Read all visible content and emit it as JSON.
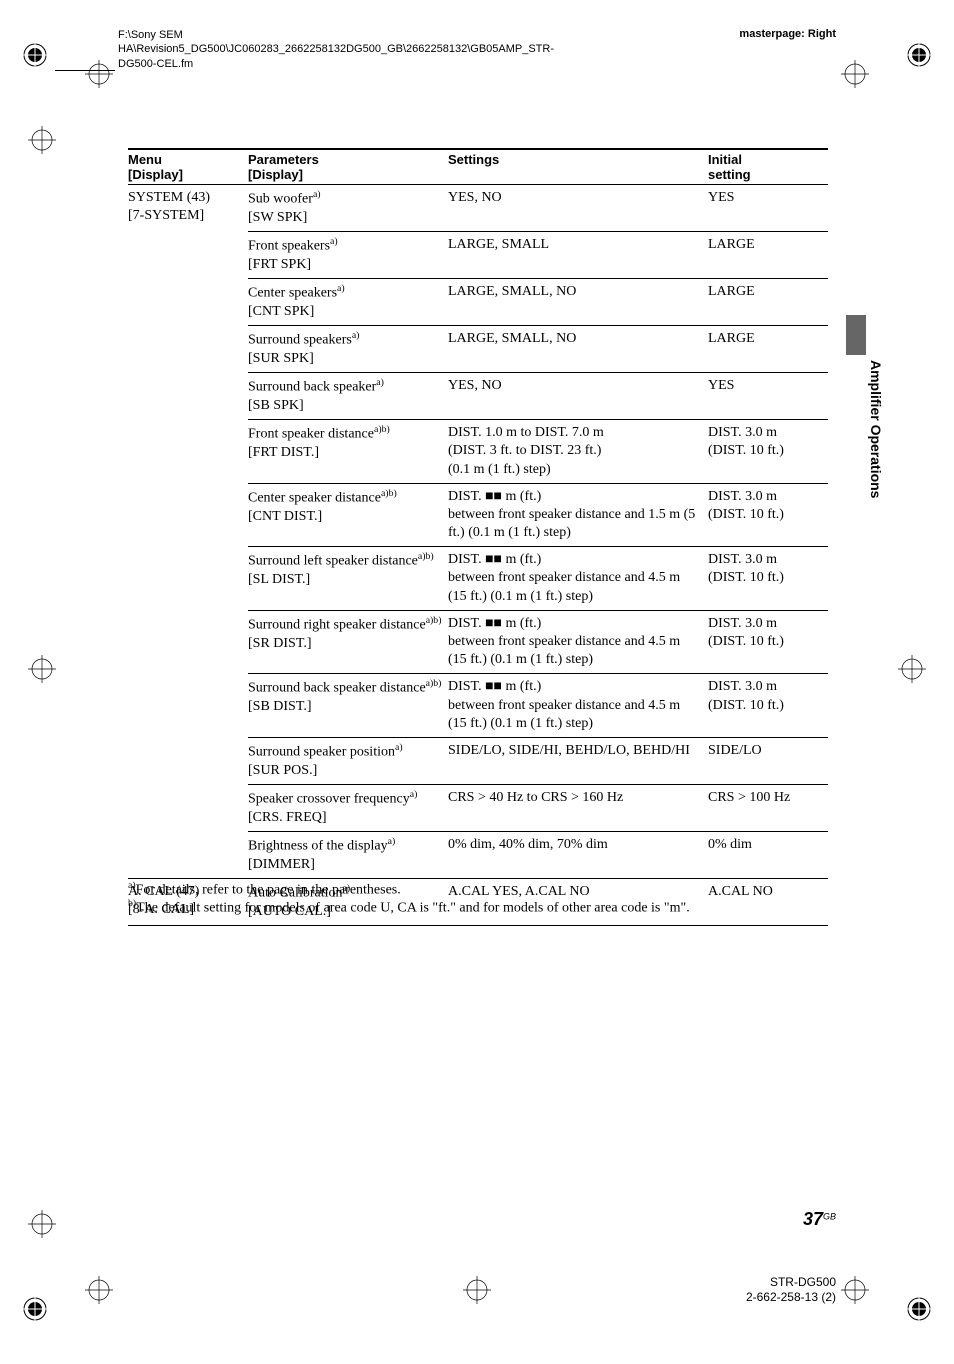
{
  "header": {
    "path": "F:\\Sony SEM HA\\Revision5_DG500\\JC060283_2662258132DG500_GB\\2662258132\\GB05AMP_STR-DG500-CEL.fm",
    "masterpage": "masterpage: Right"
  },
  "table": {
    "headers": {
      "menu": "Menu\n[Display]",
      "parameters": "Parameters\n[Display]",
      "settings": "Settings",
      "initial": "Initial\nsetting"
    },
    "rows": [
      {
        "menu": "SYSTEM (43)\n[7-SYSTEM]",
        "par_text": "Sub woofer",
        "par_sup": "a)",
        "par_disp": "[SW SPK]",
        "settings": "YES, NO",
        "initial": "YES",
        "newsection": true
      },
      {
        "menu": "",
        "par_text": "Front speakers",
        "par_sup": "a)",
        "par_disp": "[FRT SPK]",
        "settings": "LARGE, SMALL",
        "initial": "LARGE"
      },
      {
        "menu": "",
        "par_text": "Center speakers",
        "par_sup": "a)",
        "par_disp": "[CNT SPK]",
        "settings": "LARGE, SMALL, NO",
        "initial": "LARGE"
      },
      {
        "menu": "",
        "par_text": "Surround speakers",
        "par_sup": "a)",
        "par_disp": "[SUR SPK]",
        "settings": "LARGE, SMALL, NO",
        "initial": "LARGE"
      },
      {
        "menu": "",
        "par_text": "Surround back speaker",
        "par_sup": "a)",
        "par_disp": "[SB SPK]",
        "settings": "YES, NO",
        "initial": "YES"
      },
      {
        "menu": "",
        "par_text": "Front speaker distance",
        "par_sup": "a)b)",
        "par_disp": "[FRT DIST.]",
        "settings": "DIST. 1.0 m to DIST. 7.0 m\n(DIST. 3 ft. to DIST. 23 ft.)\n(0.1 m (1 ft.) step)",
        "initial": "DIST. 3.0 m\n(DIST. 10 ft.)"
      },
      {
        "menu": "",
        "par_text": "Center speaker distance",
        "par_sup": "a)b)",
        "par_disp": "[CNT DIST.]",
        "settings": "DIST. ■■ m (ft.)\nbetween front speaker distance and 1.5 m (5 ft.) (0.1 m (1 ft.) step)",
        "initial": "DIST. 3.0 m\n(DIST. 10 ft.)"
      },
      {
        "menu": "",
        "par_text": "Surround left speaker distance",
        "par_sup": "a)b)",
        "par_disp": "[SL DIST.]",
        "settings": "DIST. ■■ m (ft.)\nbetween front speaker distance and 4.5 m (15 ft.) (0.1 m (1 ft.) step)",
        "initial": "DIST. 3.0 m\n(DIST. 10 ft.)"
      },
      {
        "menu": "",
        "par_text": "Surround right speaker distance",
        "par_sup": "a)b)",
        "par_disp": "[SR DIST.]",
        "settings": "DIST. ■■ m (ft.)\nbetween front speaker distance and 4.5 m (15 ft.) (0.1 m (1 ft.) step)",
        "initial": "DIST. 3.0 m\n(DIST. 10 ft.)"
      },
      {
        "menu": "",
        "par_text": "Surround back speaker distance",
        "par_sup": "a)b)",
        "par_disp": "[SB DIST.]",
        "settings": "DIST. ■■ m (ft.)\nbetween front speaker distance and 4.5 m (15 ft.) (0.1 m (1 ft.) step)",
        "initial": "DIST. 3.0 m\n(DIST. 10 ft.)"
      },
      {
        "menu": "",
        "par_text": "Surround speaker position",
        "par_sup": "a)",
        "par_disp": "[SUR POS.]",
        "settings": "SIDE/LO, SIDE/HI, BEHD/LO, BEHD/HI",
        "initial": "SIDE/LO"
      },
      {
        "menu": "",
        "par_text": "Speaker crossover frequency",
        "par_sup": "a)",
        "par_disp": "[CRS. FREQ]",
        "settings": "CRS > 40 Hz to CRS > 160 Hz",
        "initial": "CRS > 100 Hz"
      },
      {
        "menu": "",
        "par_text": "Brightness of the display",
        "par_sup": "a)",
        "par_disp": "[DIMMER]",
        "settings": "0% dim, 40% dim, 70% dim",
        "initial": "0% dim"
      },
      {
        "menu": "A. CAL (47)\n[8-A. CAL]",
        "par_text": "Auto Calibration",
        "par_sup": "a)",
        "par_disp": "[AUTO CAL.]",
        "settings": "A.CAL YES, A.CAL NO",
        "initial": "A.CAL NO",
        "newsection": true
      }
    ]
  },
  "footnotes": {
    "a_sup": "a)",
    "a_text": "For details, refer to the page in the parentheses.",
    "b_sup": "b)",
    "b_text": "The default setting for models of area code U, CA is \"ft.\" and for models of other area code is \"m\"."
  },
  "side_label": "Amplifier Operations",
  "page_number": {
    "num": "37",
    "sup": "GB"
  },
  "footer": {
    "line1": "STR-DG500",
    "line2": "2-662-258-13 (2)"
  }
}
